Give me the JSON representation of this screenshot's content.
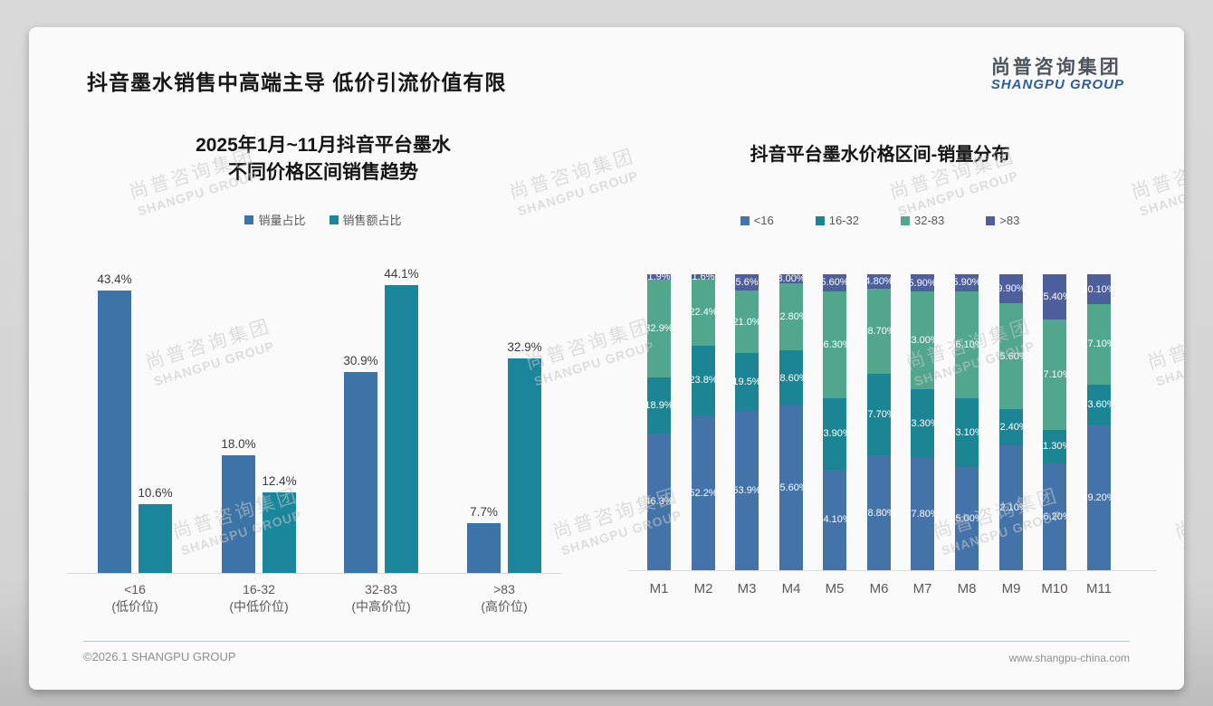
{
  "page": {
    "title": "抖音墨水销售中高端主导 低价引流价值有限",
    "logo": {
      "cn": "尚普咨询集团",
      "en": "SHANGPU GROUP"
    },
    "watermark": {
      "line1": "尚普咨询集团",
      "line2": "SHANGPU GROUP"
    },
    "footer": {
      "left": "©2026.1 SHANGPU GROUP",
      "right": "www.shangpu-china.com"
    }
  },
  "colors": {
    "left_volume_blue": "#3D74A8",
    "left_sales_teal": "#19869B",
    "stack_lt16_blue": "#4373A9",
    "stack_16_32_teal": "#1B8593",
    "stack_32_83_green": "#50A78C",
    "stack_gt83_navy": "#4D5F9D",
    "title_text": "#161616",
    "axis_text": "#595959",
    "logo_blue": "#2c5d9c"
  },
  "chart_data": [
    {
      "type": "bar",
      "subtype": "grouped",
      "title": "2025年1月~11月抖音平台墨水 不同价格区间销售趋势",
      "title_lines": [
        "2025年1月~11月抖音平台墨水",
        "不同价格区间销售趋势"
      ],
      "categories": [
        "<16",
        "16-32",
        "32-83",
        ">83"
      ],
      "category_sublabels": [
        "(低价位)",
        "(中低价位)",
        "(中高价位)",
        "(高价位)"
      ],
      "xlabel": "",
      "ylabel": "",
      "ylim": [
        0,
        50
      ],
      "grid": false,
      "legend_position": "top",
      "series": [
        {
          "name": "销量占比",
          "color": "#3D74A8",
          "values": [
            43.4,
            18.0,
            30.9,
            7.7
          ],
          "labels": [
            "43.4%",
            "18.0%",
            "30.9%",
            "7.7%"
          ]
        },
        {
          "name": "销售额占比",
          "color": "#19869B",
          "values": [
            10.6,
            12.4,
            44.1,
            32.9
          ],
          "labels": [
            "10.6%",
            "12.4%",
            "44.1%",
            "32.9%"
          ]
        }
      ]
    },
    {
      "type": "bar",
      "subtype": "stacked-100",
      "title": "抖音平台墨水价格区间-销量分布",
      "categories": [
        "M1",
        "M2",
        "M3",
        "M4",
        "M5",
        "M6",
        "M7",
        "M8",
        "M9",
        "M10",
        "M11"
      ],
      "xlabel": "",
      "ylabel": "",
      "ylim": [
        0,
        100
      ],
      "grid": false,
      "legend_position": "top",
      "stack_order": "bottom_to_top",
      "series": [
        {
          "name": "<16",
          "color": "#4373A9",
          "values": [
            46.3,
            52.2,
            53.9,
            55.6,
            34.1,
            38.8,
            37.8,
            35.0,
            42.1,
            36.2,
            49.2
          ],
          "labels": [
            "46.3%",
            "52.2%",
            "53.9%",
            "55.60%",
            "34.10%",
            "38.80%",
            "37.80%",
            "35.00%",
            "42.10%",
            "36.20%",
            "49.20%"
          ]
        },
        {
          "name": "16-32",
          "color": "#1B8593",
          "values": [
            18.9,
            23.8,
            19.5,
            18.6,
            23.9,
            27.7,
            23.3,
            23.1,
            12.4,
            11.3,
            13.6
          ],
          "labels": [
            "18.9%",
            "23.8%",
            "19.5%",
            "18.60%",
            "23.90%",
            "27.70%",
            "23.30%",
            "23.10%",
            "12.40%",
            "11.30%",
            "13.60%"
          ]
        },
        {
          "name": "32-83",
          "color": "#50A78C",
          "values": [
            32.9,
            22.4,
            21.0,
            22.8,
            36.3,
            28.7,
            33.0,
            36.1,
            35.6,
            37.1,
            27.1
          ],
          "labels": [
            "32.9%",
            "22.4%",
            "21.0%",
            "22.80%",
            "36.30%",
            "28.70%",
            "33.00%",
            "36.10%",
            "35.60%",
            "37.10%",
            "27.10%"
          ]
        },
        {
          "name": ">83",
          "color": "#4D5F9D",
          "values": [
            1.9,
            1.6,
            5.6,
            3.0,
            5.6,
            4.8,
            5.9,
            5.9,
            9.9,
            15.4,
            10.1
          ],
          "labels": [
            "1.9%",
            "1.6%",
            "5.6%",
            "3.00%",
            "5.60%",
            "4.80%",
            "5.90%",
            "5.90%",
            "9.90%",
            "15.40%",
            "10.10%"
          ]
        }
      ]
    }
  ]
}
